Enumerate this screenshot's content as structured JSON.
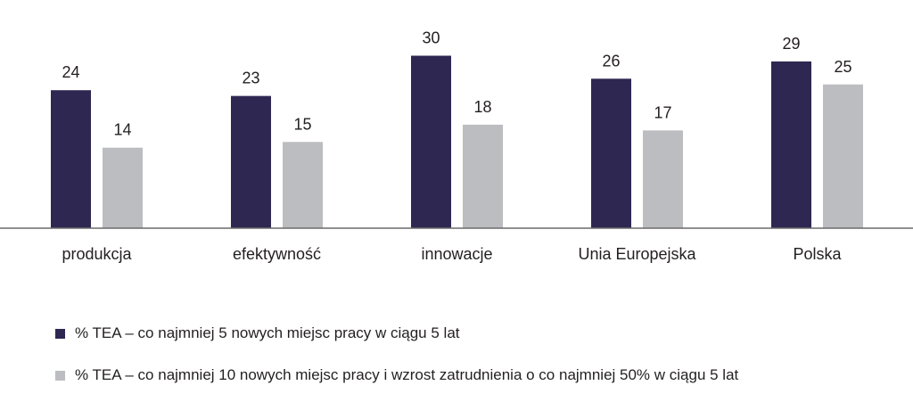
{
  "chart_data": {
    "type": "bar",
    "categories": [
      "produkcja",
      "efektywność",
      "innowacje",
      "Unia Europejska",
      "Polska"
    ],
    "series": [
      {
        "name": "% TEA – co najmniej 5 nowych miejsc pracy w ciągu 5 lat",
        "values": [
          24,
          23,
          30,
          26,
          29
        ],
        "color": "#2e2752"
      },
      {
        "name": "% TEA – co najmniej 10 nowych miejsc pracy i wzrost zatrudnienia o co najmniej 50% w ciągu 5 lat",
        "values": [
          14,
          15,
          18,
          17,
          25
        ],
        "color": "#bcbdc0"
      }
    ],
    "ylim": [
      0,
      30
    ],
    "grid": false,
    "data_labels": true,
    "legend_position": "bottom-left"
  }
}
